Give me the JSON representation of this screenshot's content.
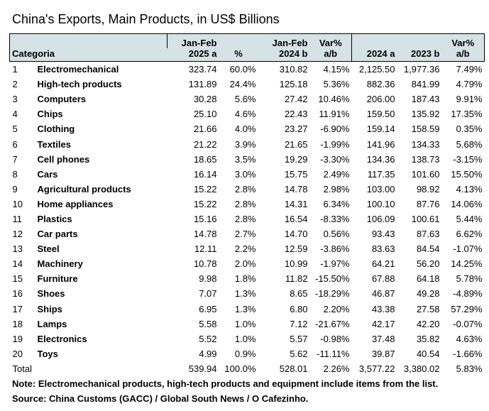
{
  "title": "China's Exports, Main Products, in US$ Billions",
  "chart_data": {
    "type": "table",
    "columns": [
      {
        "key": "rank",
        "line1": "",
        "line2": "Categoria"
      },
      {
        "key": "product",
        "line1": "",
        "line2": ""
      },
      {
        "key": "janfeb2025",
        "line1": "Jan-Feb",
        "line2": "2025 a"
      },
      {
        "key": "share",
        "line1": "",
        "line2": "%"
      },
      {
        "key": "janfeb2024",
        "line1": "Jan-Feb",
        "line2": "2024 b"
      },
      {
        "key": "var_janfeb",
        "line1": "Var%",
        "line2": "a/b"
      },
      {
        "key": "y2024",
        "line1": "",
        "line2": "2024 a"
      },
      {
        "key": "y2023",
        "line1": "",
        "line2": "2023 b"
      },
      {
        "key": "var_year",
        "line1": "Var%",
        "line2": "a/b"
      }
    ],
    "rows": [
      [
        "1",
        "Electromechanical",
        "323.74",
        "60.0%",
        "310.82",
        "4.15%",
        "2,125.50",
        "1,977.36",
        "7.49%"
      ],
      [
        "2",
        "High-tech products",
        "131.89",
        "24.4%",
        "125.18",
        "5.36%",
        "882.36",
        "841.99",
        "4.79%"
      ],
      [
        "3",
        "Computers",
        "30.28",
        "5.6%",
        "27.42",
        "10.46%",
        "206.00",
        "187.43",
        "9.91%"
      ],
      [
        "4",
        "Chips",
        "25.10",
        "4.6%",
        "22.43",
        "11.91%",
        "159.50",
        "135.92",
        "17.35%"
      ],
      [
        "5",
        "Clothing",
        "21.66",
        "4.0%",
        "23.27",
        "-6.90%",
        "159.14",
        "158.59",
        "0.35%"
      ],
      [
        "6",
        "Textiles",
        "21.22",
        "3.9%",
        "21.65",
        "-1.99%",
        "141.96",
        "134.33",
        "5.68%"
      ],
      [
        "7",
        "Cell phones",
        "18.65",
        "3.5%",
        "19.29",
        "-3.30%",
        "134.36",
        "138.73",
        "-3.15%"
      ],
      [
        "8",
        "Cars",
        "16.14",
        "3.0%",
        "15.75",
        "2.49%",
        "117.35",
        "101.60",
        "15.50%"
      ],
      [
        "9",
        "Agricultural products",
        "15.22",
        "2.8%",
        "14.78",
        "2.98%",
        "103.00",
        "98.92",
        "4.13%"
      ],
      [
        "10",
        "Home appliances",
        "15.22",
        "2.8%",
        "14.31",
        "6.34%",
        "100.10",
        "87.76",
        "14.06%"
      ],
      [
        "11",
        "Plastics",
        "15.16",
        "2.8%",
        "16.54",
        "-8.33%",
        "106.09",
        "100.61",
        "5.44%"
      ],
      [
        "12",
        "Car parts",
        "14.78",
        "2.7%",
        "14.70",
        "0.56%",
        "93.43",
        "87.63",
        "6.62%"
      ],
      [
        "13",
        "Steel",
        "12.11",
        "2.2%",
        "12.59",
        "-3.86%",
        "83.63",
        "84.54",
        "-1.07%"
      ],
      [
        "14",
        "Machinery",
        "10.78",
        "2.0%",
        "10.99",
        "-1.97%",
        "64.21",
        "56.20",
        "14.25%"
      ],
      [
        "15",
        "Furniture",
        "9.98",
        "1.8%",
        "11.82",
        "-15.50%",
        "67.88",
        "64.18",
        "5.78%"
      ],
      [
        "16",
        "Shoes",
        "7.07",
        "1.3%",
        "8.65",
        "-18.29%",
        "46.87",
        "49.28",
        "-4.89%"
      ],
      [
        "17",
        "Ships",
        "6.95",
        "1.3%",
        "6.80",
        "2.20%",
        "43.38",
        "27.58",
        "57.29%"
      ],
      [
        "18",
        "Lamps",
        "5.58",
        "1.0%",
        "7.12",
        "-21.67%",
        "42.17",
        "42.20",
        "-0.07%"
      ],
      [
        "19",
        "Electronics",
        "5.52",
        "1.0%",
        "5.57",
        "-0.98%",
        "37.48",
        "35.82",
        "4.63%"
      ],
      [
        "20",
        "Toys",
        "4.99",
        "0.9%",
        "5.62",
        "-11.11%",
        "39.87",
        "40.54",
        "-1.66%"
      ]
    ],
    "total": [
      "Total",
      "",
      "539.94",
      "100.0%",
      "528.01",
      "2.26%",
      "3,577.22",
      "3,380.02",
      "5.83%"
    ]
  },
  "note": "Note: Electromechanical products, high-tech products and equipment include items from the list.",
  "source": "Source: China Customs (GACC) / Global South News / O Cafezinho."
}
